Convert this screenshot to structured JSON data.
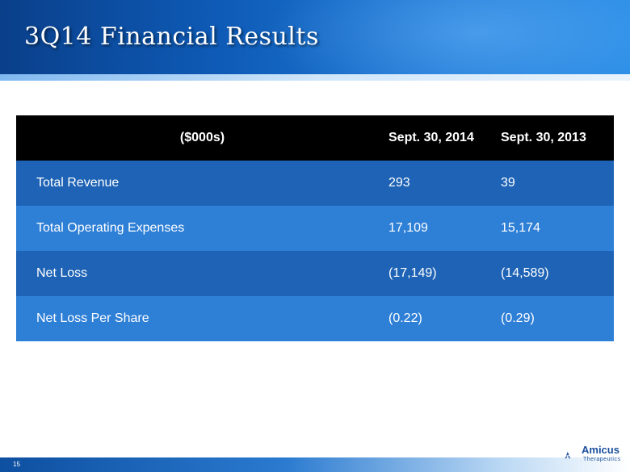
{
  "slide": {
    "title": "3Q14 Financial Results",
    "page_number": "15"
  },
  "table": {
    "headers": [
      "($000s)",
      "Sept. 30, 2014",
      "Sept. 30, 2013"
    ],
    "rows": [
      [
        "Total Revenue",
        "293",
        "39"
      ],
      [
        "Total Operating Expenses",
        "17,109",
        "15,174"
      ],
      [
        "Net Loss",
        "(17,149)",
        "(14,589)"
      ],
      [
        "Net Loss Per Share",
        "(0.22)",
        "(0.29)"
      ]
    ]
  },
  "logo": {
    "name": "Amicus",
    "tagline": "Therapeutics",
    "icon": "amicus-logo-icon"
  },
  "colors": {
    "header_blue": "#0e5bb7",
    "row_dark": "#1e63b5",
    "row_light": "#2e7fd6",
    "table_header": "#000000"
  }
}
